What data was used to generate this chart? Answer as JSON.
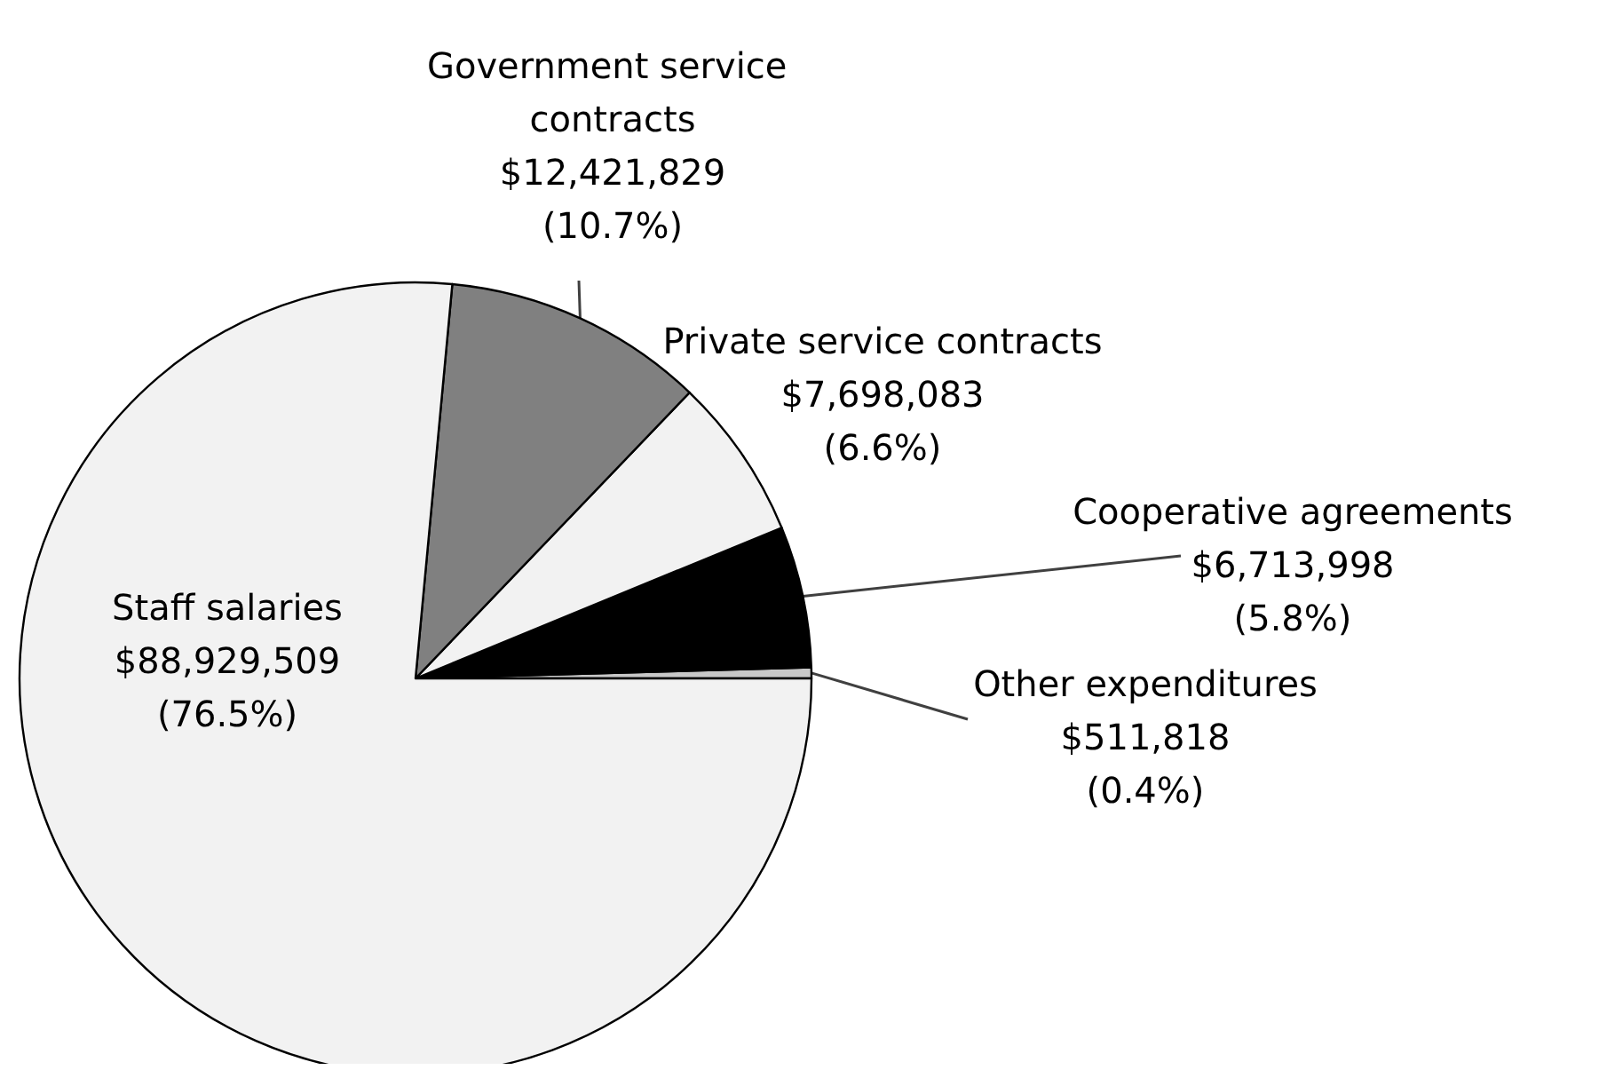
{
  "chart_data": {
    "type": "pie",
    "categories": [
      "Other expenditures",
      "Cooperative agreements",
      "Private service contracts",
      "Government service contracts",
      "Staff salaries"
    ],
    "values": [
      511818,
      6713998,
      7698083,
      12421829,
      88929509
    ],
    "value_labels": [
      "$511,818\n(0.4%)",
      "$6,713,998\n(5.8%)",
      "$7,698,083\n(6.6%)",
      "$12,421,829\n(10.7%)",
      "$88,929,509\n(76.5%)"
    ],
    "colors": [
      "#c8c8c8",
      "#000000",
      "#f2f2f2",
      "#808080",
      "#f2f2f2"
    ],
    "legend": false
  }
}
